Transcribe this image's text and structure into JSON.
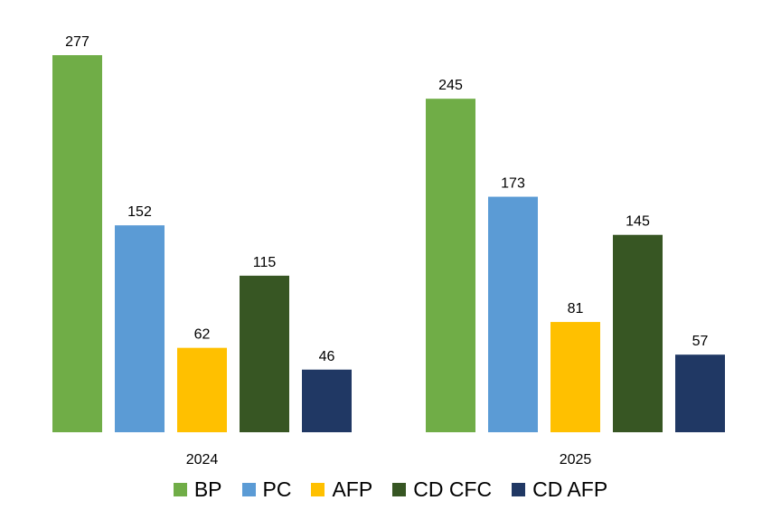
{
  "chart_data": {
    "type": "bar",
    "title": "",
    "xlabel": "",
    "ylabel": "",
    "ylim": [
      0,
      277
    ],
    "grid": false,
    "legend_position": "bottom",
    "categories": [
      "2024",
      "2025"
    ],
    "series": [
      {
        "name": "BP",
        "color": "#70ad47",
        "values": [
          277,
          245
        ]
      },
      {
        "name": "PC",
        "color": "#5b9bd5",
        "values": [
          152,
          173
        ]
      },
      {
        "name": "AFP",
        "color": "#ffc000",
        "values": [
          62,
          81
        ]
      },
      {
        "name": "CD CFC",
        "color": "#375623",
        "values": [
          115,
          145
        ]
      },
      {
        "name": "CD AFP",
        "color": "#203864",
        "values": [
          46,
          57
        ]
      }
    ]
  }
}
